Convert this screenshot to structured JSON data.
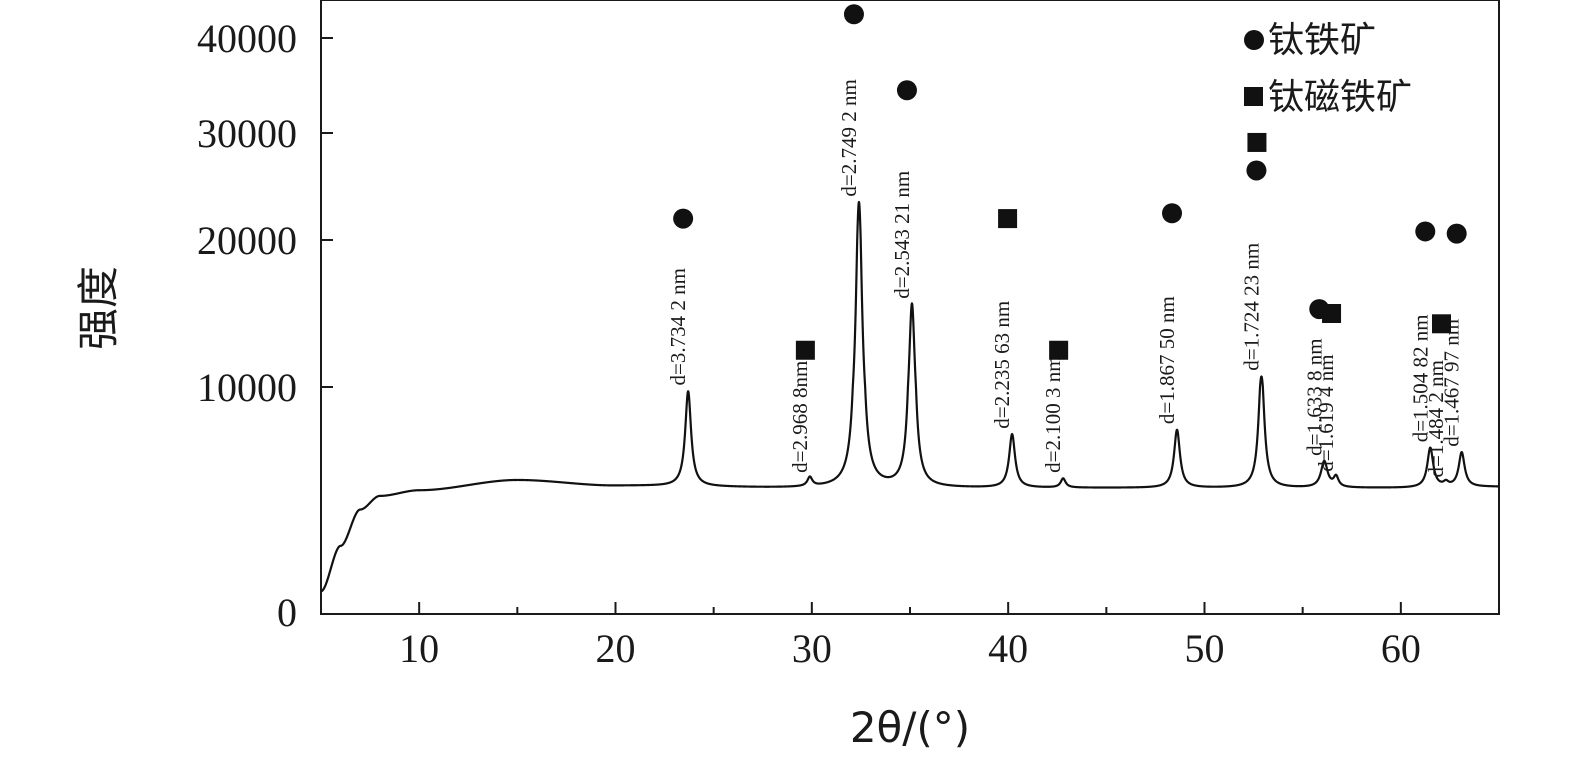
{
  "chart_data": {
    "type": "line",
    "xlabel": "2θ/(°)",
    "ylabel": "强度",
    "xlim": [
      5,
      65
    ],
    "xticks": [
      10,
      20,
      30,
      40,
      50,
      60
    ],
    "yticks": [
      0,
      10000,
      20000,
      30000,
      40000
    ],
    "legend": {
      "position": "top-right",
      "entries": [
        {
          "marker": "circle",
          "label": "钛铁矿"
        },
        {
          "marker": "square",
          "label": "钛磁铁矿"
        }
      ]
    },
    "baseline": [
      [
        5,
        1000
      ],
      [
        6,
        3000
      ],
      [
        7,
        4600
      ],
      [
        8,
        5200
      ],
      [
        10,
        5450
      ],
      [
        15,
        5900
      ],
      [
        20,
        5650
      ],
      [
        30,
        5550
      ],
      [
        40,
        5550
      ],
      [
        50,
        5550
      ],
      [
        60,
        5550
      ],
      [
        65,
        5600
      ]
    ],
    "peaks": [
      {
        "x": 23.7,
        "y": 9800,
        "w": 0.18,
        "label": "d=3.734 2 nm",
        "marker": "circle",
        "marker_y": 22000
      },
      {
        "x": 29.9,
        "y": 5950,
        "w": 0.15,
        "label": "d=2.968 8nm",
        "marker": "square",
        "marker_y": 12500
      },
      {
        "x": 32.4,
        "y": 23500,
        "w": 0.18,
        "label": "d=2.749 2 nm",
        "marker": "circle",
        "marker_y": 42500
      },
      {
        "x": 35.1,
        "y": 15600,
        "w": 0.18,
        "label": "d=2.543 21 nm",
        "marker": "circle",
        "marker_y": 34500
      },
      {
        "x": 40.2,
        "y": 7900,
        "w": 0.18,
        "label": "d=2.235 63 nm",
        "marker": "square",
        "marker_y": 22000
      },
      {
        "x": 42.8,
        "y": 5950,
        "w": 0.15,
        "label": "d=2.100 3 nm",
        "marker": "square",
        "marker_y": 12500
      },
      {
        "x": 48.6,
        "y": 8100,
        "w": 0.18,
        "label": "d=1.867 50 nm",
        "marker": "circle",
        "marker_y": 22500
      },
      {
        "x": 52.9,
        "y": 10700,
        "w": 0.18,
        "label": "d=1.724 23 nm",
        "marker": "both",
        "marker_y": 26500
      },
      {
        "x": 56.1,
        "y": 6700,
        "w": 0.2,
        "label": "d=1.633 8 nm",
        "marker": "circle",
        "marker_y": 15300
      },
      {
        "x": 56.7,
        "y": 6000,
        "w": 0.15,
        "label": "d=1.619 4 nm",
        "marker": "square",
        "marker_y": 15000
      },
      {
        "x": 61.5,
        "y": 7300,
        "w": 0.18,
        "label": "d=1.504 82 nm",
        "marker": "circle",
        "marker_y": 20800
      },
      {
        "x": 62.3,
        "y": 5750,
        "w": 0.15,
        "label": "d=1.484 2 nm",
        "marker": "square",
        "marker_y": 14300
      },
      {
        "x": 63.1,
        "y": 7100,
        "w": 0.18,
        "label": "d=1.467 97 nm",
        "marker": "circle",
        "marker_y": 20600
      }
    ]
  }
}
